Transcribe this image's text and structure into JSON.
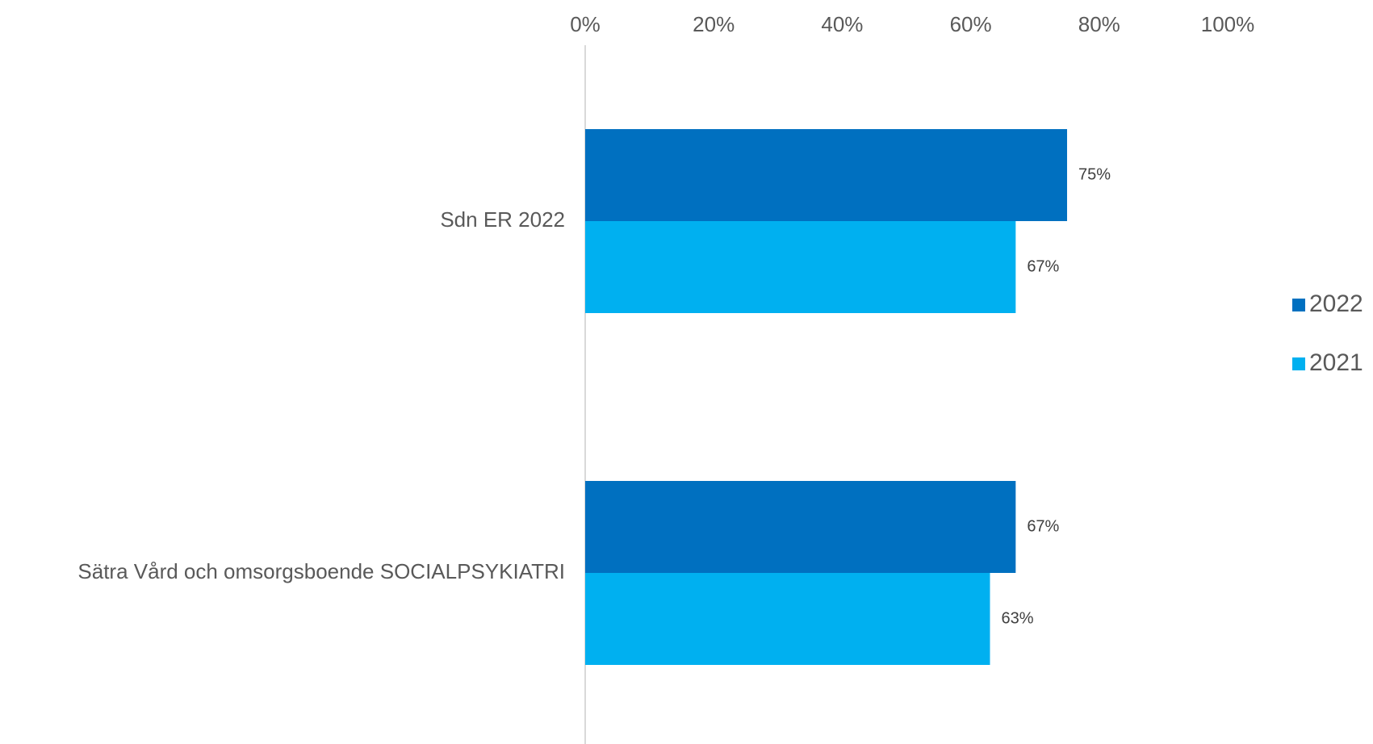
{
  "chart_data": {
    "type": "bar",
    "orientation": "horizontal",
    "categories": [
      "Sdn ER 2022",
      "Sätra Vård och omsorgsboende SOCIALPSYKIATRI"
    ],
    "series": [
      {
        "name": "2022",
        "color": "#0070C0",
        "values": [
          75,
          67
        ],
        "labels": [
          "75%",
          "67%"
        ]
      },
      {
        "name": "2021",
        "color": "#00B0F0",
        "values": [
          67,
          63
        ],
        "labels": [
          "67%",
          "63%"
        ]
      }
    ],
    "x_ticks": [
      "0%",
      "20%",
      "40%",
      "60%",
      "80%",
      "100%"
    ],
    "xlim": [
      0,
      100
    ],
    "x_axis_position": "top",
    "grid": false,
    "legend_position": "right",
    "axis_line_color": "#D9D9D9"
  }
}
